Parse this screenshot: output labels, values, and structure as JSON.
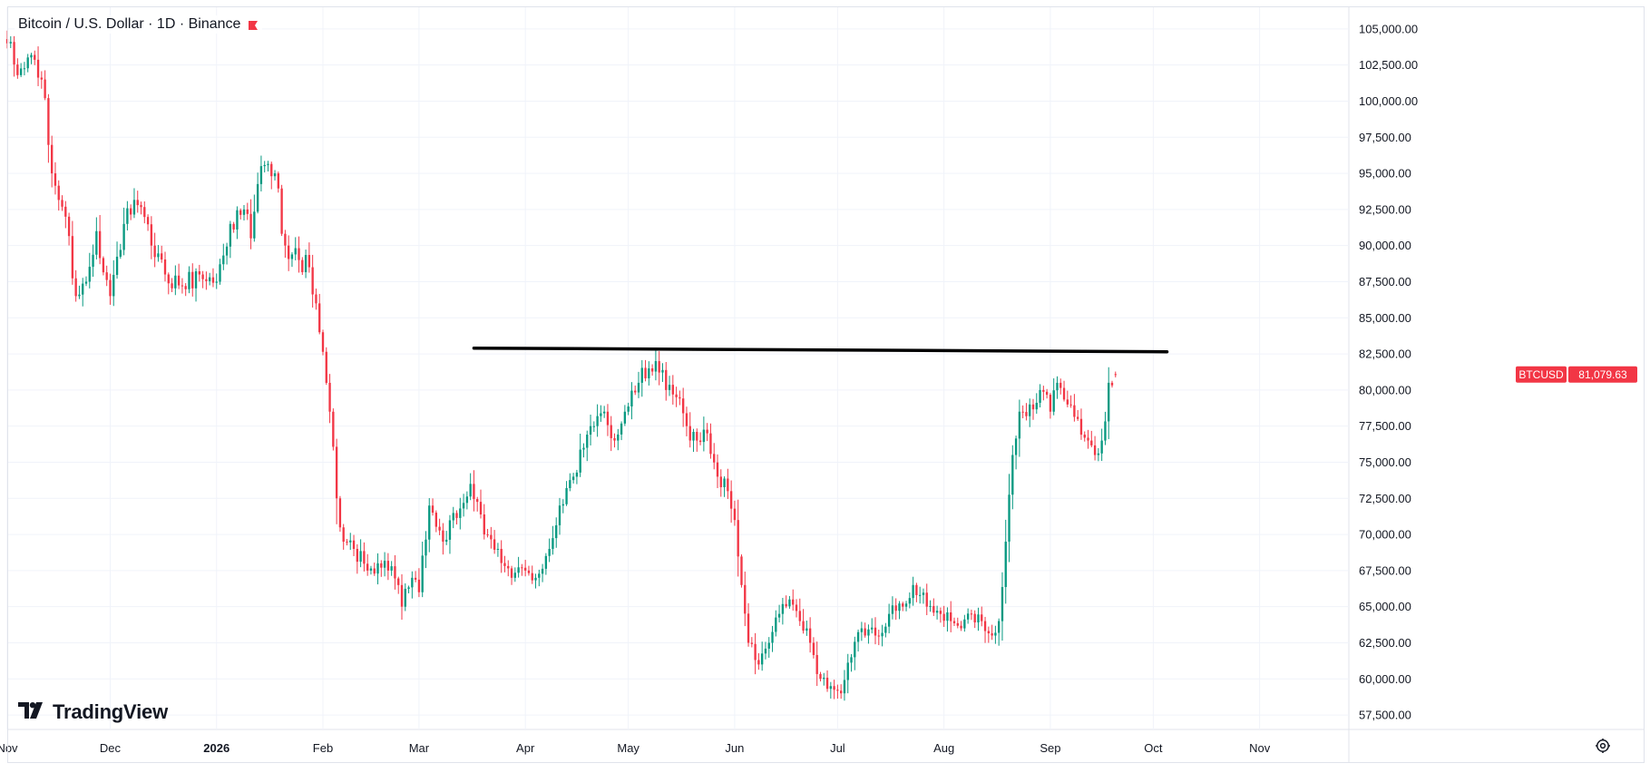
{
  "legend": {
    "symbol_title": "Bitcoin / U.S. Dollar · 1D · Binance",
    "flag_color": "#f23645"
  },
  "branding": {
    "logo_text": "TradingView"
  },
  "icons": {
    "settings": "gear-icon",
    "flag": "flag-icon",
    "logo": "tradingview-logo-icon"
  },
  "colors": {
    "up": "#089981",
    "down": "#f23645",
    "grid": "#f0f3fa",
    "axis_text": "#131722",
    "trendline": "#000000",
    "price_label_bg": "#f23645"
  },
  "chart_data": {
    "type": "candlestick",
    "symbol": "BTCUSD",
    "interval": "1D",
    "exchange": "Binance",
    "grid": true,
    "y_axis_position": "right",
    "ylim": [
      56500,
      106500
    ],
    "xlim": [
      "2025-11-01",
      "2026-11-27"
    ],
    "x_ticks": [
      {
        "label": "Nov",
        "date": "2025-11-01",
        "bold": false
      },
      {
        "label": "Dec",
        "date": "2025-12-01",
        "bold": false
      },
      {
        "label": "2026",
        "date": "2026-01-01",
        "bold": true
      },
      {
        "label": "Feb",
        "date": "2026-02-01",
        "bold": false
      },
      {
        "label": "Mar",
        "date": "2026-03-01",
        "bold": false
      },
      {
        "label": "Apr",
        "date": "2026-04-01",
        "bold": false
      },
      {
        "label": "May",
        "date": "2026-05-01",
        "bold": false
      },
      {
        "label": "Jun",
        "date": "2026-06-01",
        "bold": false
      },
      {
        "label": "Jul",
        "date": "2026-07-01",
        "bold": false
      },
      {
        "label": "Aug",
        "date": "2026-08-01",
        "bold": false
      },
      {
        "label": "Sep",
        "date": "2026-09-01",
        "bold": false
      },
      {
        "label": "Oct",
        "date": "2026-10-01",
        "bold": false
      },
      {
        "label": "Nov",
        "date": "2026-11-01",
        "bold": false
      }
    ],
    "y_ticks": [
      {
        "value": 105000,
        "label": "105,000.00"
      },
      {
        "value": 102500,
        "label": "102,500.00"
      },
      {
        "value": 100000,
        "label": "100,000.00"
      },
      {
        "value": 97500,
        "label": "97,500.00"
      },
      {
        "value": 95000,
        "label": "95,000.00"
      },
      {
        "value": 92500,
        "label": "92,500.00"
      },
      {
        "value": 90000,
        "label": "90,000.00"
      },
      {
        "value": 87500,
        "label": "87,500.00"
      },
      {
        "value": 85000,
        "label": "85,000.00"
      },
      {
        "value": 82500,
        "label": "82,500.00"
      },
      {
        "value": 80000,
        "label": "80,000.00"
      },
      {
        "value": 77500,
        "label": "77,500.00"
      },
      {
        "value": 75000,
        "label": "75,000.00"
      },
      {
        "value": 72500,
        "label": "72,500.00"
      },
      {
        "value": 70000,
        "label": "70,000.00"
      },
      {
        "value": 67500,
        "label": "67,500.00"
      },
      {
        "value": 65000,
        "label": "65,000.00"
      },
      {
        "value": 62500,
        "label": "62,500.00"
      },
      {
        "value": 60000,
        "label": "60,000.00"
      },
      {
        "value": 57500,
        "label": "57,500.00"
      }
    ],
    "last_price": {
      "symbol_label": "BTCUSD",
      "value": 81079.63,
      "label": "81,079.63"
    },
    "trendline": {
      "start": {
        "date": "2026-03-17",
        "price": 82900
      },
      "end": {
        "date": "2026-10-05",
        "price": 82650
      }
    },
    "price_path": [
      {
        "date": "2025-11-01",
        "price": 104000
      },
      {
        "date": "2025-11-04",
        "price": 101800
      },
      {
        "date": "2025-11-08",
        "price": 103200
      },
      {
        "date": "2025-11-11",
        "price": 101500
      },
      {
        "date": "2025-11-14",
        "price": 95000
      },
      {
        "date": "2025-11-18",
        "price": 92000
      },
      {
        "date": "2025-11-21",
        "price": 86500
      },
      {
        "date": "2025-11-24",
        "price": 87500
      },
      {
        "date": "2025-11-27",
        "price": 91000
      },
      {
        "date": "2025-12-01",
        "price": 86500
      },
      {
        "date": "2025-12-05",
        "price": 91500
      },
      {
        "date": "2025-12-09",
        "price": 92800
      },
      {
        "date": "2025-12-13",
        "price": 90000
      },
      {
        "date": "2025-12-17",
        "price": 88000
      },
      {
        "date": "2025-12-22",
        "price": 87200
      },
      {
        "date": "2025-12-27",
        "price": 88000
      },
      {
        "date": "2026-01-01",
        "price": 87500
      },
      {
        "date": "2026-01-05",
        "price": 91500
      },
      {
        "date": "2026-01-09",
        "price": 92500
      },
      {
        "date": "2026-01-11",
        "price": 90500
      },
      {
        "date": "2026-01-14",
        "price": 95500
      },
      {
        "date": "2026-01-18",
        "price": 95000
      },
      {
        "date": "2026-01-21",
        "price": 90000
      },
      {
        "date": "2026-01-25",
        "price": 89000
      },
      {
        "date": "2026-01-28",
        "price": 88500
      },
      {
        "date": "2026-01-31",
        "price": 84000
      },
      {
        "date": "2026-02-03",
        "price": 78500
      },
      {
        "date": "2026-02-05",
        "price": 72500
      },
      {
        "date": "2026-02-07",
        "price": 69500
      },
      {
        "date": "2026-02-10",
        "price": 69000
      },
      {
        "date": "2026-02-14",
        "price": 67500
      },
      {
        "date": "2026-02-17",
        "price": 68000
      },
      {
        "date": "2026-02-21",
        "price": 67800
      },
      {
        "date": "2026-02-24",
        "price": 65000
      },
      {
        "date": "2026-02-27",
        "price": 67000
      },
      {
        "date": "2026-03-01",
        "price": 66000
      },
      {
        "date": "2026-03-04",
        "price": 72000
      },
      {
        "date": "2026-03-08",
        "price": 69500
      },
      {
        "date": "2026-03-13",
        "price": 71800
      },
      {
        "date": "2026-03-16",
        "price": 73500
      },
      {
        "date": "2026-03-20",
        "price": 70000
      },
      {
        "date": "2026-03-24",
        "price": 69000
      },
      {
        "date": "2026-03-28",
        "price": 67000
      },
      {
        "date": "2026-04-01",
        "price": 67500
      },
      {
        "date": "2026-04-04",
        "price": 67000
      },
      {
        "date": "2026-04-08",
        "price": 69000
      },
      {
        "date": "2026-04-11",
        "price": 72000
      },
      {
        "date": "2026-04-15",
        "price": 74000
      },
      {
        "date": "2026-04-18",
        "price": 76000
      },
      {
        "date": "2026-04-21",
        "price": 77500
      },
      {
        "date": "2026-04-24",
        "price": 78500
      },
      {
        "date": "2026-04-27",
        "price": 76500
      },
      {
        "date": "2026-04-30",
        "price": 78500
      },
      {
        "date": "2026-05-04",
        "price": 80500
      },
      {
        "date": "2026-05-07",
        "price": 81500
      },
      {
        "date": "2026-05-09",
        "price": 82000
      },
      {
        "date": "2026-05-12",
        "price": 80000
      },
      {
        "date": "2026-05-15",
        "price": 79500
      },
      {
        "date": "2026-05-18",
        "price": 77500
      },
      {
        "date": "2026-05-21",
        "price": 76500
      },
      {
        "date": "2026-05-24",
        "price": 77000
      },
      {
        "date": "2026-05-27",
        "price": 74000
      },
      {
        "date": "2026-05-30",
        "price": 73000
      },
      {
        "date": "2026-06-01",
        "price": 71000
      },
      {
        "date": "2026-06-03",
        "price": 66500
      },
      {
        "date": "2026-06-05",
        "price": 62500
      },
      {
        "date": "2026-06-08",
        "price": 61000
      },
      {
        "date": "2026-06-11",
        "price": 62500
      },
      {
        "date": "2026-06-14",
        "price": 64500
      },
      {
        "date": "2026-06-17",
        "price": 65500
      },
      {
        "date": "2026-06-20",
        "price": 64000
      },
      {
        "date": "2026-06-23",
        "price": 62500
      },
      {
        "date": "2026-06-26",
        "price": 60000
      },
      {
        "date": "2026-06-29",
        "price": 59500
      },
      {
        "date": "2026-07-02",
        "price": 59000
      },
      {
        "date": "2026-07-05",
        "price": 61500
      },
      {
        "date": "2026-07-08",
        "price": 63500
      },
      {
        "date": "2026-07-12",
        "price": 63000
      },
      {
        "date": "2026-07-16",
        "price": 64500
      },
      {
        "date": "2026-07-20",
        "price": 65000
      },
      {
        "date": "2026-07-23",
        "price": 66500
      },
      {
        "date": "2026-07-27",
        "price": 65000
      },
      {
        "date": "2026-07-31",
        "price": 64500
      },
      {
        "date": "2026-08-03",
        "price": 64000
      },
      {
        "date": "2026-08-06",
        "price": 63500
      },
      {
        "date": "2026-08-09",
        "price": 64500
      },
      {
        "date": "2026-08-12",
        "price": 64000
      },
      {
        "date": "2026-08-15",
        "price": 63000
      },
      {
        "date": "2026-08-17",
        "price": 64000
      },
      {
        "date": "2026-08-19",
        "price": 69500
      },
      {
        "date": "2026-08-21",
        "price": 75500
      },
      {
        "date": "2026-08-23",
        "price": 78500
      },
      {
        "date": "2026-08-26",
        "price": 79000
      },
      {
        "date": "2026-08-29",
        "price": 80000
      },
      {
        "date": "2026-09-01",
        "price": 78500
      },
      {
        "date": "2026-09-03",
        "price": 80500
      },
      {
        "date": "2026-09-06",
        "price": 79000
      },
      {
        "date": "2026-09-09",
        "price": 78000
      },
      {
        "date": "2026-09-12",
        "price": 76500
      },
      {
        "date": "2026-09-14",
        "price": 75500
      },
      {
        "date": "2026-09-16",
        "price": 76500
      },
      {
        "date": "2026-09-18",
        "price": 80500
      },
      {
        "date": "2026-09-20",
        "price": 81079.63
      }
    ]
  }
}
